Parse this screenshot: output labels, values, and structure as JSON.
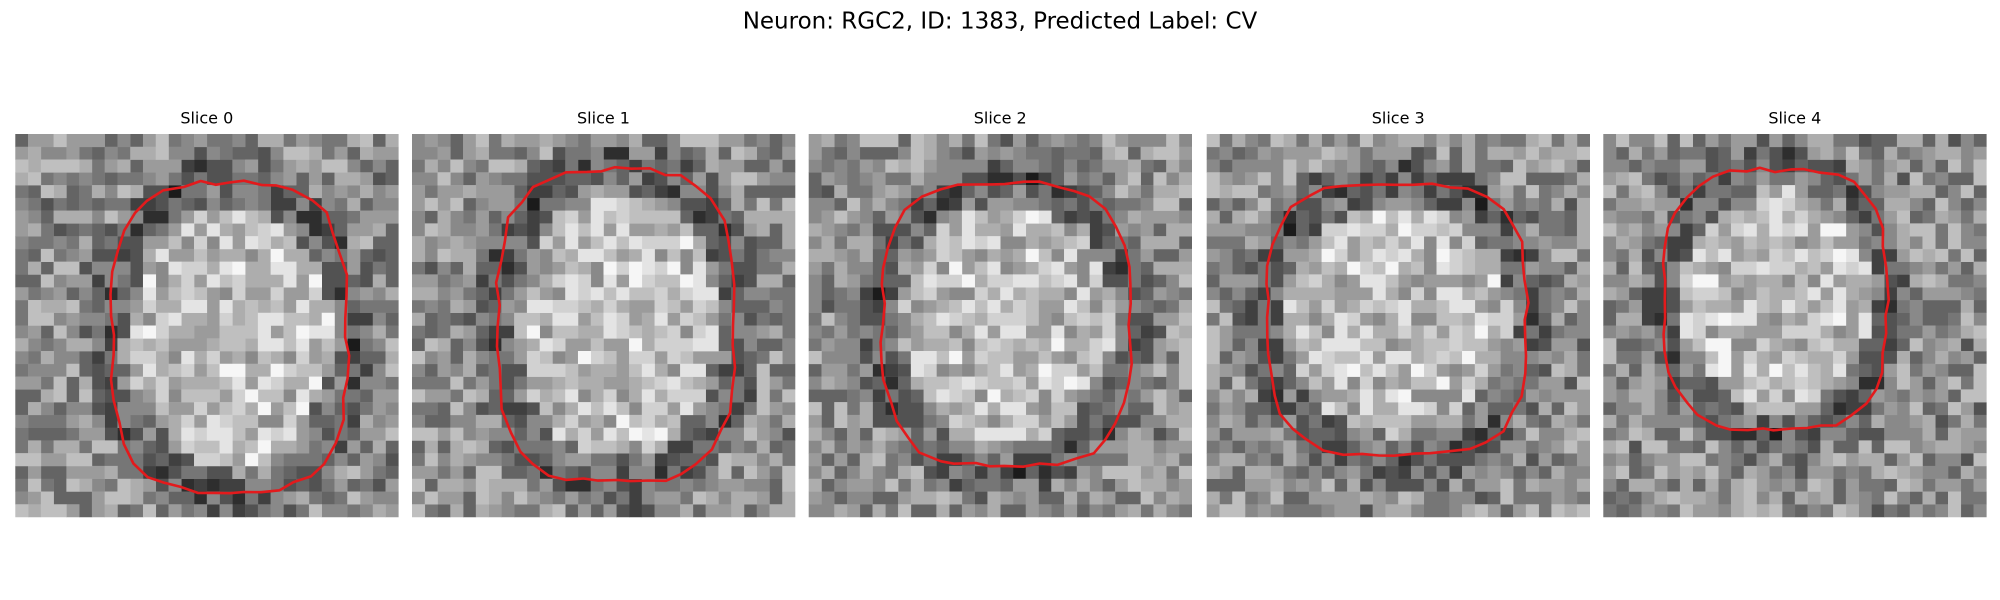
{
  "title": "Neuron: RGC2, ID: 1383, Predicted Label: CV",
  "panels": [
    {
      "title": "Slice 0"
    },
    {
      "title": "Slice 1"
    },
    {
      "title": "Slice 2"
    },
    {
      "title": "Slice 3"
    },
    {
      "title": "Slice 4"
    }
  ]
}
